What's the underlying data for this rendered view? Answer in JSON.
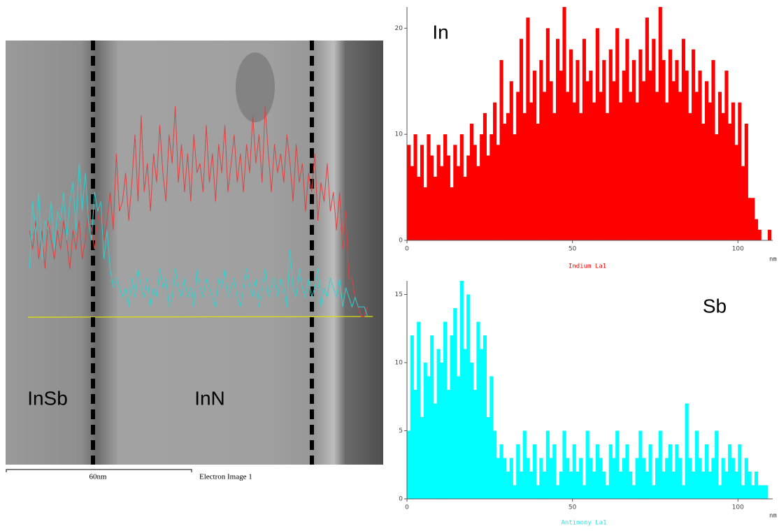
{
  "image": {
    "labels": [
      "InSb",
      "InN"
    ],
    "scale_bar": "60nm",
    "caption": "Electron Image 1"
  },
  "chart_data": [
    {
      "type": "histogram",
      "title": "In",
      "xlabel": "Indium La1",
      "x_unit": "nm",
      "color": "#ff0000",
      "bins": [
        0,
        1,
        2,
        3,
        4,
        5,
        6,
        7,
        8,
        9,
        10,
        11,
        12,
        13,
        14,
        15,
        16,
        17,
        18,
        19,
        20,
        21,
        22,
        23,
        24,
        25,
        26,
        27,
        28,
        29,
        30,
        31,
        32,
        33,
        34,
        35,
        36,
        37,
        38,
        39,
        40,
        41,
        42,
        43,
        44,
        45,
        46,
        47,
        48,
        49,
        50,
        51,
        52,
        53,
        54,
        55,
        56,
        57,
        58,
        59,
        60,
        61,
        62,
        63,
        64,
        65,
        66,
        67,
        68,
        69,
        70,
        71,
        72,
        73,
        74,
        75,
        76,
        77,
        78,
        79,
        80,
        81,
        82,
        83,
        84,
        85,
        86,
        87,
        88,
        89,
        90,
        91,
        92,
        93,
        94,
        95,
        96,
        97,
        98,
        99,
        100,
        101,
        102,
        103,
        104,
        105,
        106,
        107,
        108,
        109,
        110
      ],
      "values": [
        9,
        7,
        10,
        6,
        9,
        5,
        10,
        8,
        6,
        9,
        7,
        10,
        8,
        5,
        9,
        7,
        10,
        6,
        8,
        11,
        9,
        7,
        10,
        12,
        8,
        10,
        13,
        9,
        17,
        11,
        12,
        15,
        10,
        14,
        19,
        12,
        21,
        13,
        16,
        11,
        17,
        14,
        20,
        15,
        12,
        19,
        16,
        22,
        14,
        18,
        13,
        17,
        12,
        19,
        15,
        16,
        13,
        20,
        14,
        17,
        12,
        18,
        15,
        20,
        13,
        16,
        19,
        14,
        17,
        13,
        18,
        15,
        21,
        16,
        19,
        14,
        22,
        17,
        13,
        18,
        15,
        17,
        14,
        19,
        16,
        12,
        18,
        14,
        16,
        11,
        15,
        13,
        17,
        10,
        14,
        12,
        16,
        11,
        13,
        9,
        13,
        7,
        11,
        4,
        4,
        2,
        1,
        0,
        0,
        1
      ],
      "xlim": [
        0,
        110.5
      ],
      "ylim": [
        0,
        22
      ],
      "xticks": [
        0,
        50,
        100
      ],
      "yticks": [
        0,
        10,
        20
      ]
    },
    {
      "type": "histogram",
      "title": "Sb",
      "xlabel": "Antimony La1",
      "x_unit": "nm",
      "color": "#00ffff",
      "bins": [
        0,
        1,
        2,
        3,
        4,
        5,
        6,
        7,
        8,
        9,
        10,
        11,
        12,
        13,
        14,
        15,
        16,
        17,
        18,
        19,
        20,
        21,
        22,
        23,
        24,
        25,
        26,
        27,
        28,
        29,
        30,
        31,
        32,
        33,
        34,
        35,
        36,
        37,
        38,
        39,
        40,
        41,
        42,
        43,
        44,
        45,
        46,
        47,
        48,
        49,
        50,
        51,
        52,
        53,
        54,
        55,
        56,
        57,
        58,
        59,
        60,
        61,
        62,
        63,
        64,
        65,
        66,
        67,
        68,
        69,
        70,
        71,
        72,
        73,
        74,
        75,
        76,
        77,
        78,
        79,
        80,
        81,
        82,
        83,
        84,
        85,
        86,
        87,
        88,
        89,
        90,
        91,
        92,
        93,
        94,
        95,
        96,
        97,
        98,
        99,
        100,
        101,
        102,
        103,
        104,
        105,
        106,
        107,
        108,
        109,
        110
      ],
      "values": [
        5,
        12,
        8,
        13,
        6,
        10,
        9,
        12,
        7,
        11,
        10,
        13,
        8,
        12,
        14,
        9,
        16,
        11,
        15,
        10,
        8,
        13,
        11,
        12,
        6,
        9,
        5,
        3,
        4,
        3,
        2,
        3,
        1,
        4,
        2,
        5,
        3,
        2,
        4,
        1,
        3,
        2,
        5,
        3,
        4,
        1,
        2,
        5,
        3,
        2,
        4,
        2,
        3,
        1,
        5,
        3,
        2,
        4,
        3,
        2,
        1,
        4,
        3,
        5,
        2,
        3,
        4,
        2,
        1,
        3,
        5,
        3,
        2,
        4,
        1,
        3,
        5,
        2,
        3,
        4,
        2,
        4,
        3,
        1,
        7,
        3,
        2,
        5,
        3,
        2,
        4,
        2,
        3,
        5,
        1,
        3,
        2,
        4,
        3,
        2,
        4,
        1,
        3,
        2,
        1,
        2,
        1,
        1,
        1,
        0
      ],
      "xlim": [
        0,
        110.5
      ],
      "ylim": [
        0,
        16
      ],
      "xticks": [
        0,
        50,
        100
      ],
      "yticks": [
        0,
        5,
        10,
        15
      ]
    }
  ]
}
